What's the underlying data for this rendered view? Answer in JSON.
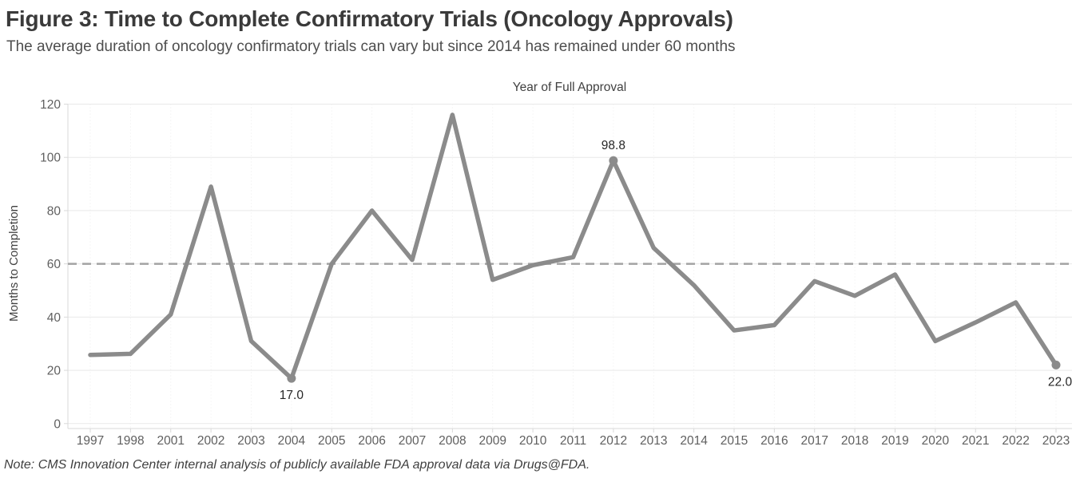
{
  "header": {
    "title": "Figure 3: Time to Complete Confirmatory Trials (Oncology Approvals)",
    "subtitle": "The average duration of oncology confirmatory trials can vary but since 2014 has remained under 60 months"
  },
  "note": "Note: CMS Innovation Center internal analysis of publicly available FDA approval data via Drugs@FDA.",
  "chart_data": {
    "type": "line",
    "title": "Figure 3: Time to Complete Confirmatory Trials (Oncology Approvals)",
    "xlabel": "Year of Full Approval",
    "ylabel": "Months to Completion",
    "categories": [
      "1997",
      "1998",
      "2001",
      "2002",
      "2003",
      "2004",
      "2005",
      "2006",
      "2007",
      "2008",
      "2009",
      "2010",
      "2011",
      "2012",
      "2013",
      "2014",
      "2015",
      "2016",
      "2017",
      "2018",
      "2019",
      "2020",
      "2021",
      "2022",
      "2023"
    ],
    "values": [
      25.8,
      26.2,
      41,
      89,
      31,
      17,
      60,
      80,
      61.5,
      116,
      54,
      59.5,
      62.5,
      98.8,
      66,
      52,
      35,
      37,
      53.5,
      48,
      56,
      31,
      38,
      45.5,
      22
    ],
    "ylim": [
      0,
      120
    ],
    "yticks": [
      0,
      20,
      40,
      60,
      80,
      100,
      120
    ],
    "reference_line": {
      "value": 60,
      "style": "dashed"
    },
    "point_labels": [
      {
        "category": "2004",
        "text": "17.0",
        "position": "below"
      },
      {
        "category": "2012",
        "text": "98.8",
        "position": "above"
      },
      {
        "category": "2023",
        "text": "22.0",
        "position": "below"
      }
    ],
    "grid": true,
    "legend": "none",
    "colors": {
      "line": "#8b8b8b",
      "marker": "#8b8b8b",
      "reference_line": "#a3a3a3",
      "gridline": "#e9e9e9",
      "column_gridline": "#ededed",
      "axis": "#d9d9d9",
      "tick_text": "#5f5f5f",
      "axis_title_text": "#414141",
      "point_label_text": "#262626"
    }
  }
}
